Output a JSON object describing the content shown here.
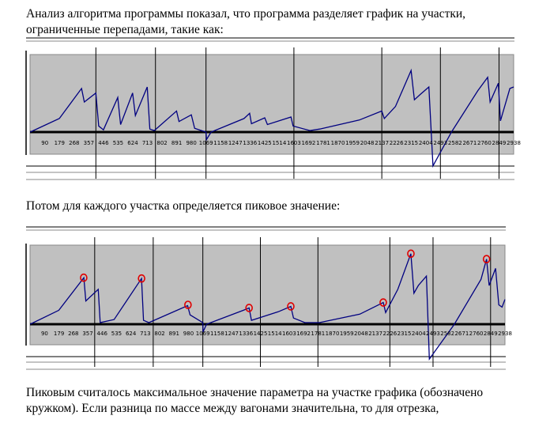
{
  "document": {
    "paragraph_1": "Анализ алгоритма программы показал, что программа разделяет график на участки, ограниченные перепадами, такие как:",
    "paragraph_2": "Потом для каждого участка определяется пиковое значение:",
    "paragraph_3": "Пиковым считалось максимальное значение параметра на участке графика (обозначено кружком). Если разница по массе между вагонами значительна, то для отрезка,"
  },
  "colors": {
    "plot_bg": "#c0c0c0",
    "line": "#000080",
    "marker": "#e00000"
  },
  "chart_data": [
    {
      "type": "line",
      "title": "",
      "xlabel": "",
      "ylabel": "",
      "x_tick_labels": [
        "90",
        "179",
        "268",
        "357",
        "446",
        "535",
        "624",
        "713",
        "802",
        "891",
        "980",
        "1069",
        "1158",
        "1247",
        "1336",
        "1425",
        "1514",
        "1603",
        "1692",
        "1781",
        "1870",
        "1959",
        "2048",
        "2137",
        "2226",
        "2315",
        "2404",
        "2493",
        "2582",
        "2671",
        "2760",
        "2849",
        "2938"
      ],
      "segment_boundaries": [
        400,
        762,
        1069,
        1603,
        2137,
        2493,
        2849
      ],
      "series": [
        {
          "values": [
            [
              1,
              0
            ],
            [
              178,
              0.18
            ],
            [
              313,
              0.58
            ],
            [
              330,
              0.4
            ],
            [
              400,
              0.52
            ],
            [
              417,
              0.08
            ],
            [
              446,
              0.03
            ],
            [
              533,
              0.46
            ],
            [
              550,
              0.1
            ],
            [
              623,
              0.52
            ],
            [
              640,
              0.22
            ],
            [
              712,
              0.6
            ],
            [
              728,
              0.04
            ],
            [
              755,
              0.02
            ],
            [
              890,
              0.28
            ],
            [
              905,
              0.14
            ],
            [
              980,
              0.23
            ],
            [
              1000,
              0.05
            ],
            [
              1069,
              0.0
            ],
            [
              1072,
              -0.1
            ],
            [
              1100,
              0.0
            ],
            [
              1300,
              0.18
            ],
            [
              1334,
              0.25
            ],
            [
              1345,
              0.11
            ],
            [
              1426,
              0.19
            ],
            [
              1442,
              0.1
            ],
            [
              1585,
              0.2
            ],
            [
              1598,
              0.08
            ],
            [
              1700,
              0.02
            ],
            [
              1760,
              0.04
            ],
            [
              2000,
              0.16
            ],
            [
              2137,
              0.28
            ],
            [
              2152,
              0.18
            ],
            [
              2220,
              0.34
            ],
            [
              2315,
              0.82
            ],
            [
              2335,
              0.43
            ],
            [
              2370,
              0.5
            ],
            [
              2423,
              0.6
            ],
            [
              2448,
              -0.45
            ],
            [
              2560,
              0.0
            ],
            [
              2720,
              0.55
            ],
            [
              2780,
              0.73
            ],
            [
              2795,
              0.4
            ],
            [
              2845,
              0.65
            ],
            [
              2858,
              0.15
            ],
            [
              2915,
              0.58
            ],
            [
              2938,
              0.6
            ]
          ]
        }
      ]
    },
    {
      "type": "line",
      "title": "",
      "xlabel": "",
      "ylabel": "",
      "x_tick_labels": [
        "90",
        "179",
        "268",
        "357",
        "446",
        "535",
        "624",
        "713",
        "802",
        "891",
        "980",
        "1069",
        "1158",
        "1247",
        "1336",
        "1425",
        "1514",
        "1603",
        "1692",
        "1781",
        "1870",
        "1959",
        "2048",
        "2137",
        "2226",
        "2315",
        "2404",
        "2493",
        "2582",
        "2671",
        "2760",
        "2849",
        "2938"
      ],
      "segment_boundaries": [
        400,
        762,
        1069,
        1425,
        1781,
        2226,
        2493,
        2849
      ],
      "peaks": [
        [
          332,
          0.6
        ],
        [
          690,
          0.59
        ],
        [
          977,
          0.25
        ],
        [
          1355,
          0.21
        ],
        [
          1613,
          0.23
        ],
        [
          2185,
          0.28
        ],
        [
          2356,
          0.91
        ],
        [
          2824,
          0.84
        ]
      ],
      "series": [
        {
          "values": [
            [
              1,
              0
            ],
            [
              178,
              0.18
            ],
            [
              333,
              0.6
            ],
            [
              345,
              0.3
            ],
            [
              422,
              0.45
            ],
            [
              434,
              0.02
            ],
            [
              520,
              0.06
            ],
            [
              690,
              0.59
            ],
            [
              702,
              0.05
            ],
            [
              735,
              0.02
            ],
            [
              975,
              0.24
            ],
            [
              990,
              0.12
            ],
            [
              1069,
              0.02
            ],
            [
              1070,
              -0.1
            ],
            [
              1092,
              0.0
            ],
            [
              1320,
              0.18
            ],
            [
              1355,
              0.21
            ],
            [
              1370,
              0.05
            ],
            [
              1535,
              0.16
            ],
            [
              1613,
              0.23
            ],
            [
              1630,
              0.08
            ],
            [
              1700,
              0.02
            ],
            [
              1790,
              0.02
            ],
            [
              2040,
              0.13
            ],
            [
              2185,
              0.28
            ],
            [
              2200,
              0.15
            ],
            [
              2275,
              0.45
            ],
            [
              2356,
              0.91
            ],
            [
              2375,
              0.4
            ],
            [
              2402,
              0.5
            ],
            [
              2452,
              0.62
            ],
            [
              2470,
              -0.45
            ],
            [
              2625,
              0.0
            ],
            [
              2790,
              0.58
            ],
            [
              2824,
              0.84
            ],
            [
              2840,
              0.5
            ],
            [
              2880,
              0.72
            ],
            [
              2900,
              0.25
            ],
            [
              2920,
              0.22
            ],
            [
              2938,
              0.32
            ]
          ]
        }
      ]
    }
  ]
}
